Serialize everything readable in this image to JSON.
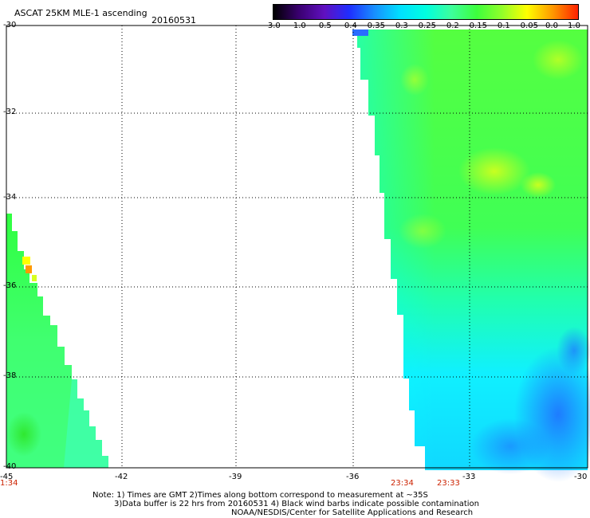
{
  "header": {
    "title": "ASCAT 25KM MLE-1 ascending",
    "date": "20160531"
  },
  "colorbar": {
    "labels": [
      "-3.0",
      "-1.0",
      "-0.5",
      "-0.4",
      "-0.35",
      "-0.3",
      "-0.25",
      "-0.2",
      "-0.15",
      "-0.1",
      "-0.05",
      "0.0",
      "1.0"
    ],
    "colors": [
      "#000000",
      "#5a0fa6",
      "#1f2eff",
      "#1578ff",
      "#00c8ff",
      "#00ffff",
      "#3dff9c",
      "#3dff3d",
      "#5aff3a",
      "#a8ff2e",
      "#ffff00",
      "#ff9900",
      "#ff2200"
    ]
  },
  "axes": {
    "lat_labels": [
      "-30",
      "-32",
      "-34",
      "-36",
      "-38",
      "-40"
    ],
    "lon_labels": [
      "-45",
      "-42",
      "-39",
      "-36",
      "-33",
      "-30"
    ]
  },
  "pass_times": [
    "1:34",
    "23:34",
    "23:33"
  ],
  "colors": {
    "swath_green": "#4fff3d",
    "swath_cyan": "#00ffff",
    "swath_blue": "#1e8cff",
    "time_label": "#cc2200"
  },
  "notes": {
    "line1": "Note: 1) Times are GMT 2)Times along bottom correspond to measurement at ~35S",
    "line2": "3)Data buffer is 22 hrs from 20160531 4) Black wind barbs indicate possible contamination",
    "line3": "NOAA/NESDIS/Center for Satellite Applications and Research"
  }
}
